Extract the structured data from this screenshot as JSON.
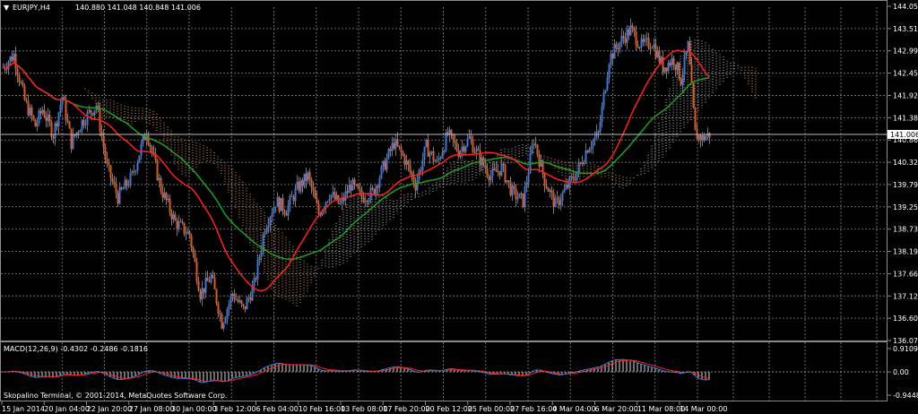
{
  "header": {
    "dropdown_arrow": "▼",
    "symbol_timeframe": "EURJPY,H4",
    "ohlc": "140.880 141.048 140.848 141.006"
  },
  "main_chart": {
    "price_ticks": [
      "144.055",
      "143.515",
      "142.990",
      "142.450",
      "141.925",
      "141.385",
      "140.860",
      "140.325",
      "139.795",
      "139.255",
      "138.730",
      "138.190",
      "137.665",
      "137.125",
      "136.600",
      "136.075"
    ],
    "current_price": "141.006",
    "current_price_value": 141.006,
    "price_range": [
      136.075,
      144.055
    ]
  },
  "macd_panel": {
    "title": "MACD(12,26,9) -0.4302 -0.2486 -0.1816",
    "ticks": [
      "0.9109",
      "0.00",
      "-0.9448"
    ]
  },
  "time_axis": {
    "labels": [
      "15 Jan 2014",
      "20 Jan 04:00",
      "22 Jan 20:00",
      "27 Jan 08:00",
      "30 Jan 00:00",
      "3 Feb 12:00",
      "6 Feb 04:00",
      "10 Feb 16:00",
      "13 Feb 08:00",
      "17 Feb 20:00",
      "20 Feb 12:00",
      "25 Feb 00:00",
      "27 Feb 16:00",
      "4 Mar 04:00",
      "6 Mar 20:00",
      "11 Mar 08:00",
      "14 Mar 00:00"
    ]
  },
  "copyright": "Skopalino Terminal, © 2001-2014, MetaQuotes Software Corp.",
  "colors": {
    "background": "#000000",
    "grid": "#6a6a6a",
    "bull_candle": "#3a78e0",
    "bear_candle": "#e05a1e",
    "ma_fast": "#ff2020",
    "ma_slow": "#20a020",
    "cloud_light": "#c8c8c8",
    "cloud_dark": "#e8a070",
    "macd_hist": "#d8d8d8",
    "macd_line": "#3a78e0",
    "signal_line": "#ff2020",
    "text": "#ffffff"
  }
}
